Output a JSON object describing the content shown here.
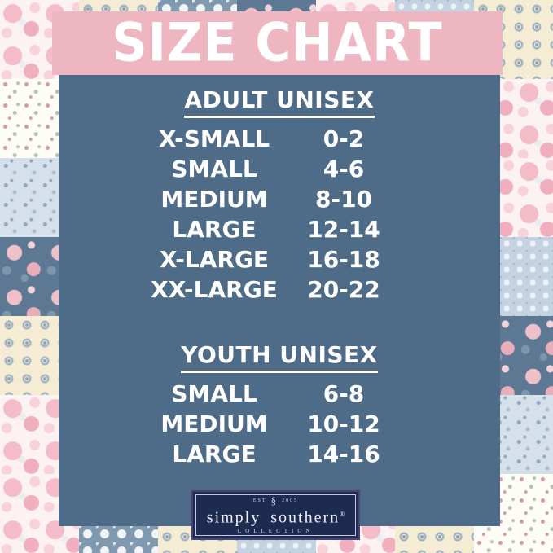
{
  "header": {
    "title": "SIZE CHART"
  },
  "colors": {
    "band_pink": "#edb6c1",
    "panel_slate": "#4e6c87",
    "logo_navy": "#1e2b50",
    "text_white": "#ffffff"
  },
  "adult": {
    "heading": "ADULT UNISEX",
    "rows": [
      {
        "label": "X-SMALL",
        "value": "0-2"
      },
      {
        "label": "SMALL",
        "value": "4-6"
      },
      {
        "label": "MEDIUM",
        "value": "8-10"
      },
      {
        "label": "LARGE",
        "value": "12-14"
      },
      {
        "label": "X-LARGE",
        "value": "16-18"
      },
      {
        "label": "XX-LARGE",
        "value": "20-22"
      }
    ]
  },
  "youth": {
    "heading": "YOUTH UNISEX",
    "rows": [
      {
        "label": "SMALL",
        "value": "6-8"
      },
      {
        "label": "MEDIUM",
        "value": "10-12"
      },
      {
        "label": "LARGE",
        "value": "14-16"
      }
    ]
  },
  "logo": {
    "est_prefix": "EST",
    "est_year": "2005",
    "monogram_glyph": "§",
    "brand": "simply southern",
    "registered": "®",
    "collection": "COLLECTION"
  },
  "background": {
    "tiles": [
      "pink-floral",
      "cream-medallion",
      "lace-band",
      "navy-floral",
      "pink-floral",
      "blue-dot",
      "cream-medallion",
      "white-sprig",
      "blue-dot",
      "pink-floral",
      "cream-medallion",
      "navy-floral",
      "lace-band",
      "pink-floral",
      "blue-sprig",
      "navy-floral",
      "cream-medallion",
      "blue-dot",
      "pink-floral",
      "white-sprig",
      "pink-floral",
      "navy-floral",
      "pink-floral",
      "blue-sprig",
      "lace-band",
      "cream-medallion",
      "pink-floral",
      "blue-dot",
      "cream-medallion",
      "white-sprig",
      "navy-floral",
      "pink-floral",
      "blue-dot",
      "cream-medallion",
      "navy-floral",
      "pink-floral",
      "blue-dot",
      "lace-band",
      "white-sprig",
      "navy-floral",
      "pink-floral",
      "blue-sprig",
      "pink-floral",
      "lace-band",
      "cream-medallion",
      "blue-dot",
      "pink-floral",
      "cream-medallion",
      "white-sprig"
    ]
  }
}
